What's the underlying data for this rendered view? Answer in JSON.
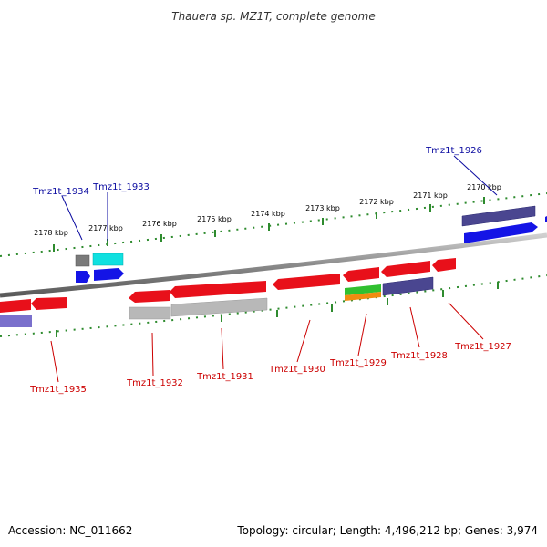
{
  "title": "Thauera sp. MZ1T, complete genome",
  "footer": {
    "accession": "Accession: NC_011662",
    "summary": "Topology: circular; Length: 4,496,212 bp; Genes: 3,974"
  },
  "scale": {
    "unit": "kbp",
    "ticks": [
      "2178 kbp",
      "2177 kbp",
      "2176 kbp",
      "2175 kbp",
      "2174 kbp",
      "2173 kbp",
      "2172 kbp",
      "2171 kbp",
      "2170 kbp"
    ]
  },
  "colors": {
    "forward_label": "#0a0aa0",
    "reverse_label": "#cc0000",
    "dotted_track": "#2e8b2e",
    "backbone": "#8a8a8a",
    "gene_red": "#e8101a",
    "gene_blue": "#1414e6",
    "gene_navy": "#4a4690",
    "gene_cyan": "#10e0e0",
    "gene_gray": "#7a7a7a",
    "gene_lightgray": "#b8b8b8",
    "gene_green": "#30c030",
    "gene_orange": "#f08c10",
    "gene_lavender": "#7a70cc"
  },
  "labels": {
    "forward": [
      "Tmz1t_1934",
      "Tmz1t_1933",
      "Tmz1t_1926"
    ],
    "reverse": [
      "Tmz1t_1935",
      "Tmz1t_1932",
      "Tmz1t_1931",
      "Tmz1t_1930",
      "Tmz1t_1929",
      "Tmz1t_1928",
      "Tmz1t_1927"
    ]
  }
}
